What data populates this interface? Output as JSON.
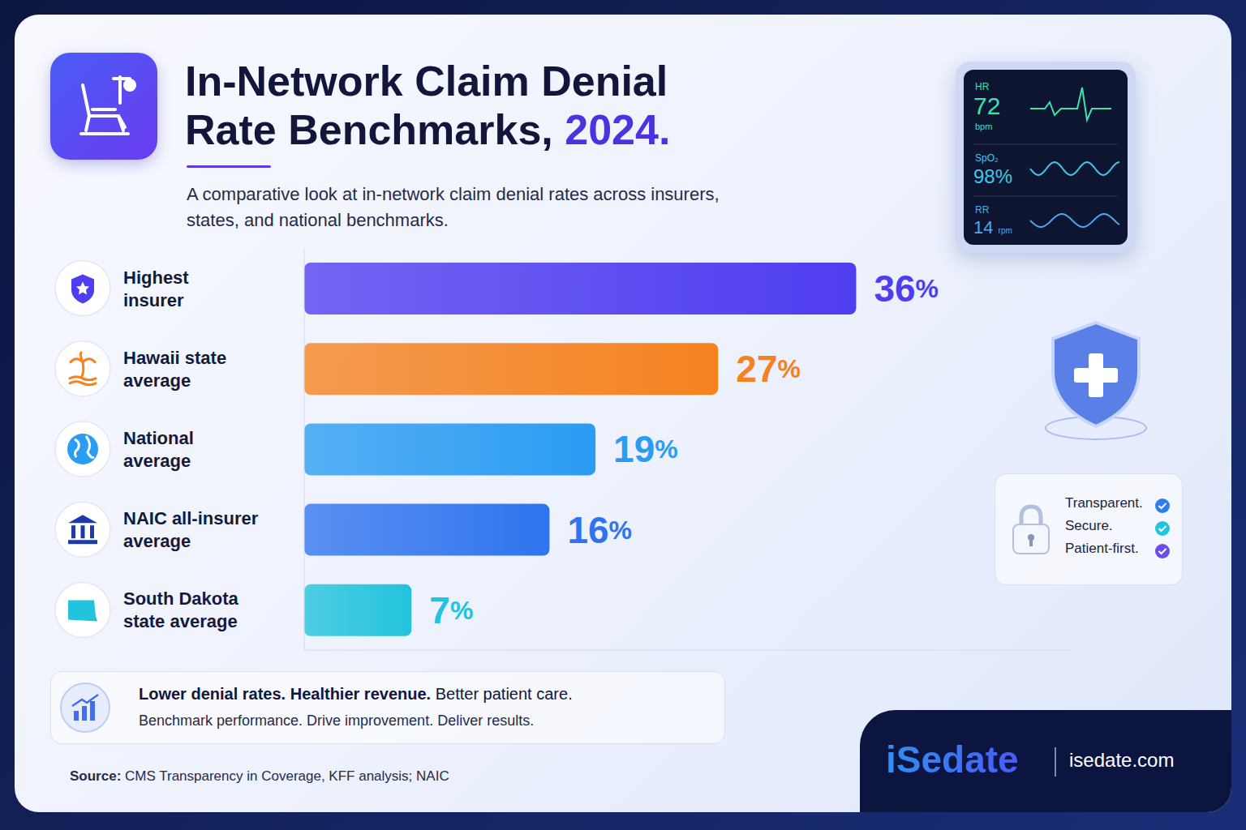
{
  "chart_data": {
    "type": "bar",
    "orientation": "horizontal",
    "title": "In-Network Claim Denial Rate Benchmarks, 2024.",
    "subtitle": "A comparative look at in-network claim denial rates across insurers, states, and national benchmarks.",
    "categories": [
      "Highest insurer",
      "Hawaii state average",
      "National average",
      "NAIC all-insurer average",
      "South Dakota state average"
    ],
    "values": [
      36,
      27,
      19,
      16,
      7
    ],
    "value_labels": [
      "36%",
      "27%",
      "19%",
      "16%",
      "7%"
    ],
    "colors": [
      "#4f3df0",
      "#f5821f",
      "#2a9cf2",
      "#2f74ee",
      "#22c3dc"
    ],
    "xlim": [
      0,
      50
    ],
    "grid": false,
    "data_labels": true,
    "tick_labels": "y",
    "annotations": [
      "Lower denial rates. Healthier revenue.",
      "Better patient care.",
      "Benchmark performance. Drive improvement. Deliver results.",
      "Source:",
      "CMS Transparency in Coverage, KFF analysis; NAIC",
      "Transparent.",
      "Secure.",
      "Patient-first.",
      "iSedate",
      "isedate.com",
      "HR",
      "72",
      "bpm",
      "SpO₂",
      "98%",
      "RR",
      "14",
      "rpm"
    ]
  }
}
